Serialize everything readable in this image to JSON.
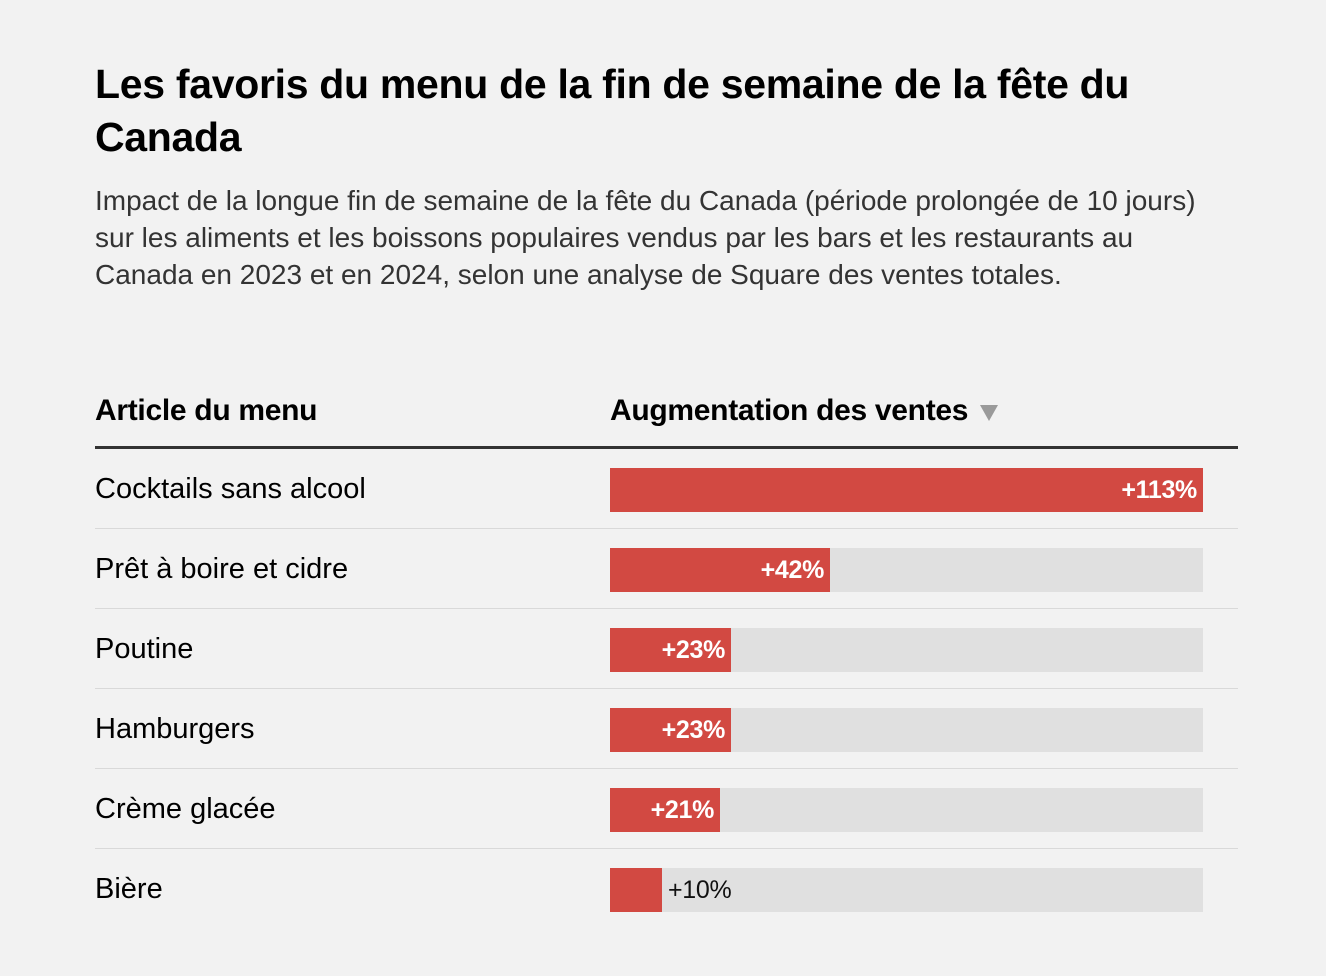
{
  "title": "Les favoris du menu de la fin de semaine de la fête du Canada",
  "subtitle": "Impact de la longue fin de semaine de la fête du Canada (période prolongée de 10 jours) sur les aliments et les boissons populaires vendus par les bars et les restaurants au Canada en 2023 et en 2024, selon une analyse de Square des ventes totales.",
  "table": {
    "col_item": "Article du menu",
    "col_change": "Augmentation des ventes",
    "sort_icon": "sort-descending-triangle-icon"
  },
  "colors": {
    "bar": "#d24942",
    "track": "#e0e0e0",
    "background": "#f2f2f2"
  },
  "chart_data": {
    "type": "bar",
    "orientation": "horizontal",
    "categories": [
      "Cocktails sans alcool",
      "Prêt à boire et cidre",
      "Poutine",
      "Hamburgers",
      "Crème glacée",
      "Bière"
    ],
    "values": [
      113,
      42,
      23,
      23,
      21,
      10
    ],
    "value_labels": [
      "+113%",
      "+42%",
      "+23%",
      "+23%",
      "+21%",
      "+10%"
    ],
    "xlim": [
      0,
      113
    ],
    "grid": false
  }
}
